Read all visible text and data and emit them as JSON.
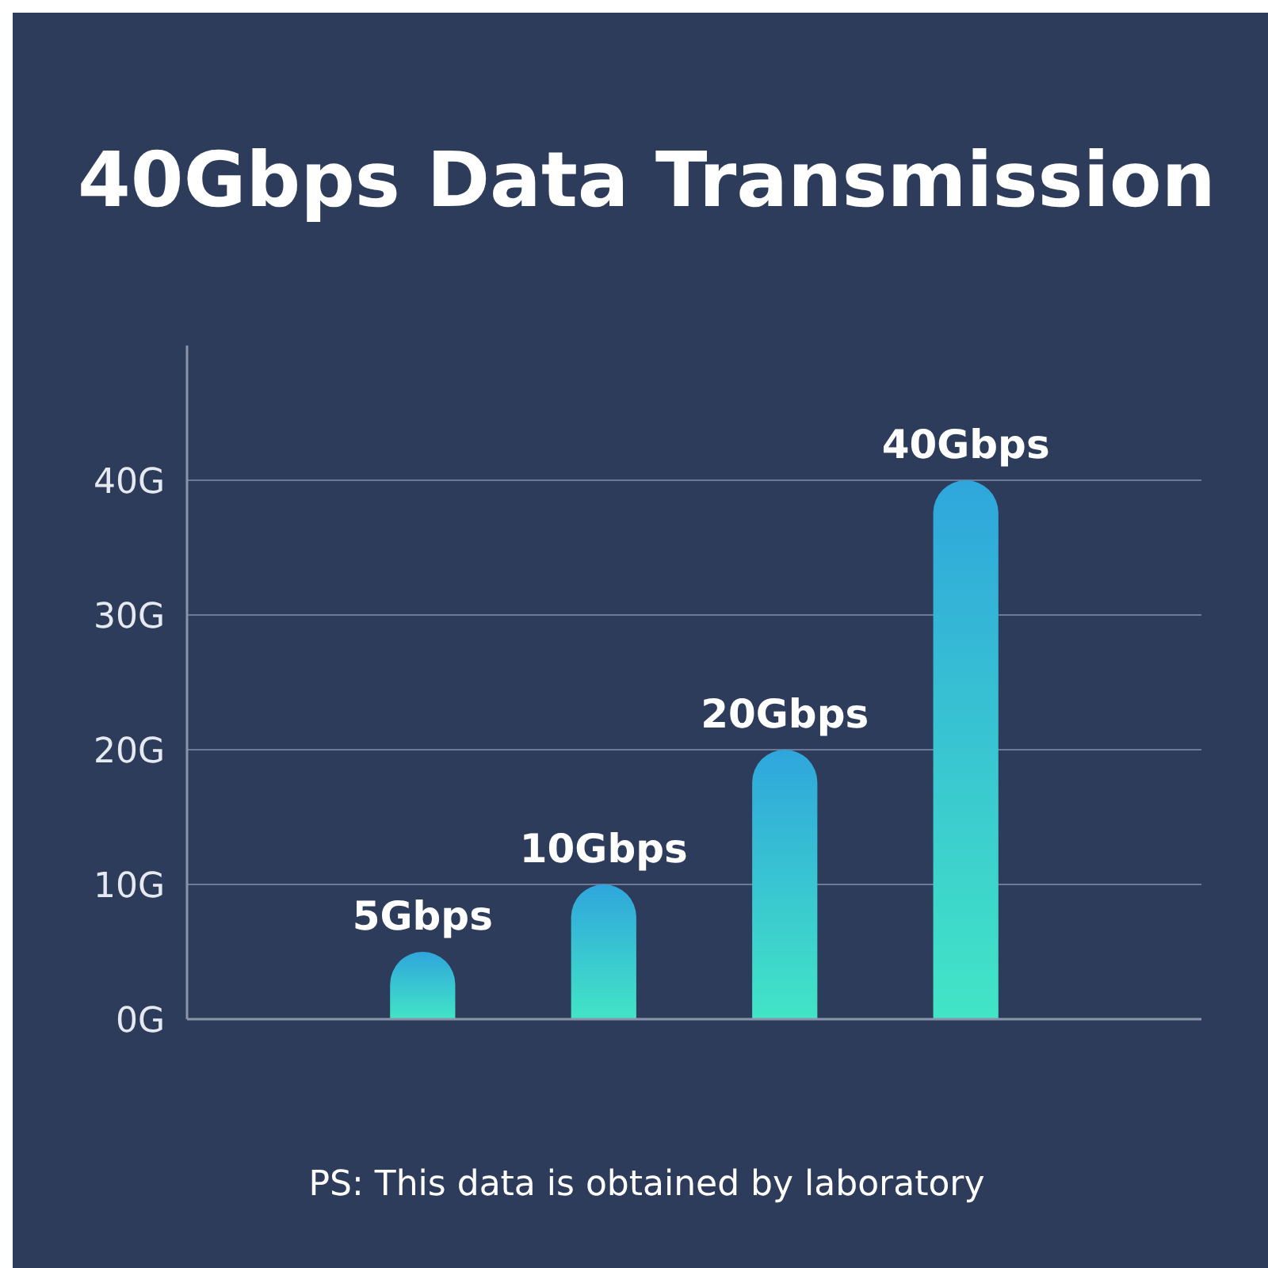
{
  "chart_data": {
    "type": "bar",
    "title": "40Gbps Data Transmission",
    "categories": [
      null,
      null,
      null,
      null
    ],
    "values": [
      5,
      10,
      20,
      40
    ],
    "value_labels": [
      "5Gbps",
      "10Gbps",
      "20Gbps",
      "40Gbps"
    ],
    "color": "#2fa6dc",
    "ylim": [
      0,
      50
    ],
    "yticks": [
      {
        "value": 0,
        "label": "0G"
      },
      {
        "value": 10,
        "label": "10G"
      },
      {
        "value": 20,
        "label": "20G"
      },
      {
        "value": 30,
        "label": "30G"
      },
      {
        "value": 40,
        "label": "40G"
      }
    ],
    "grid": "y",
    "annotations": [
      "PS: This data is obtained by laboratory"
    ]
  }
}
